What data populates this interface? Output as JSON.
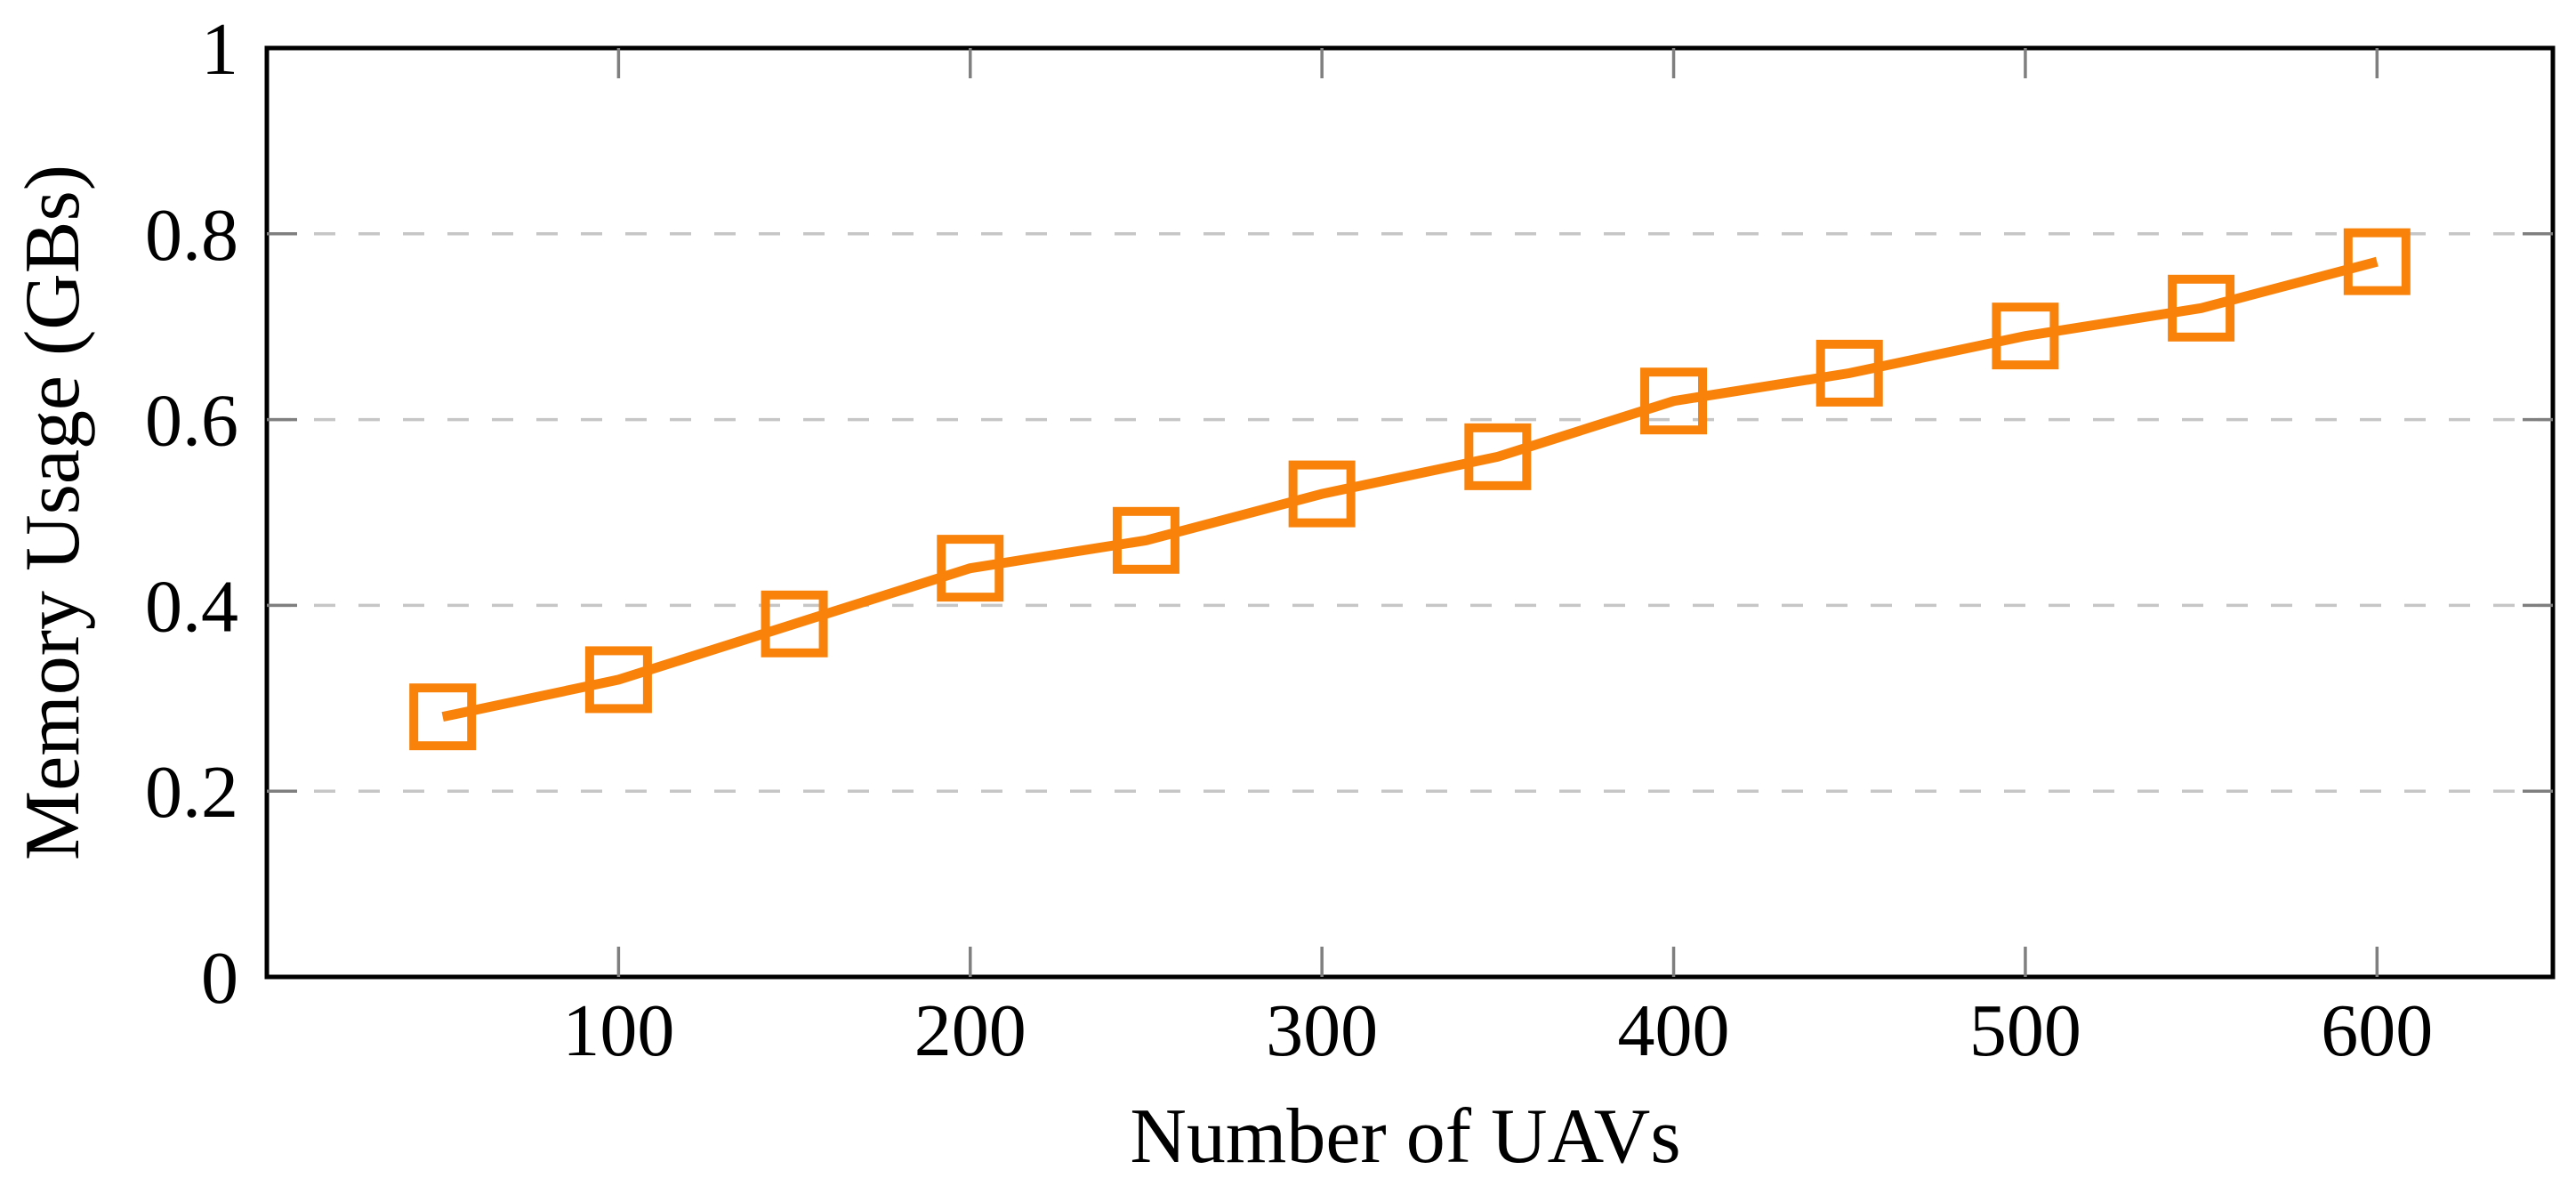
{
  "figure": {
    "background": "#ffffff"
  },
  "chart_data": {
    "type": "line",
    "title": "",
    "xlabel": "Number of UAVs",
    "ylabel": "Memory Usage (GBs)",
    "x": [
      50,
      100,
      150,
      200,
      250,
      300,
      350,
      400,
      450,
      500,
      550,
      600
    ],
    "series": [
      {
        "name": "memory-usage",
        "values": [
          0.28,
          0.32,
          0.38,
          0.44,
          0.47,
          0.52,
          0.56,
          0.62,
          0.65,
          0.69,
          0.72,
          0.77
        ],
        "color": "#F8820A",
        "marker": "open-square"
      }
    ],
    "xlim": [
      0,
      650
    ],
    "ylim": [
      0,
      1
    ],
    "xticks": {
      "values": [
        100,
        200,
        300,
        400,
        500,
        600
      ],
      "labels": [
        "100",
        "200",
        "300",
        "400",
        "500",
        "600"
      ]
    },
    "yticks": {
      "values": [
        0,
        0.2,
        0.4,
        0.6,
        0.8,
        1
      ],
      "labels": [
        "0",
        "0.2",
        "0.4",
        "0.6",
        "0.8",
        "1"
      ]
    },
    "grid": {
      "horizontal_dashed_at": [
        0.2,
        0.4,
        0.6,
        0.8
      ],
      "color": "#C6C6C6",
      "style": "dashed",
      "legend_position": "none"
    },
    "axis": {
      "frame_color": "#000000",
      "tick_color": "#7F7F7F",
      "ticks_mirrored": true,
      "text_color": "#000000"
    }
  }
}
